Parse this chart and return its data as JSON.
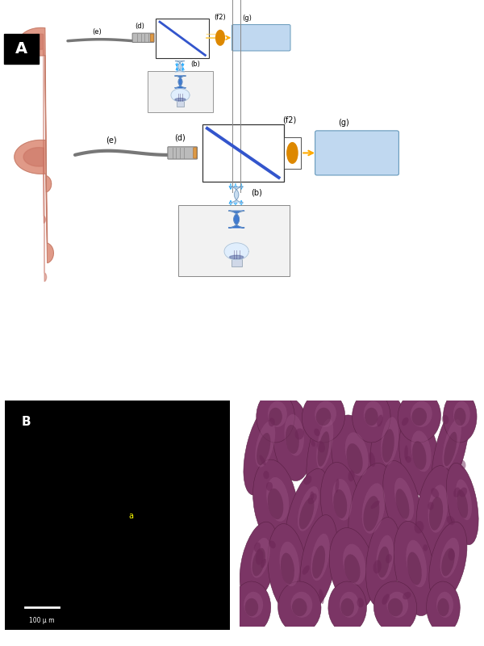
{
  "bg_color": "#ffffff",
  "panel_A_label": "A",
  "panel_B_label": "B",
  "microscopy_label": "a",
  "scale_bar_text": "100 μ m",
  "histo_bg": "#c8ece8",
  "stomach_outer": "#d4907a",
  "stomach_inner": "#c07060",
  "endoscope_cable": "#777777",
  "endoscope_tip": "#999999",
  "beamsplitter_color": "#3355cc",
  "box_border": "#333333",
  "lens_blue": "#2266cc",
  "lens_blue_light": "#88bbee",
  "lens_orange": "#dd8800",
  "detector_fill": "#c0d8f0",
  "detector_border": "#6699bb",
  "arrow_blue": "#22aaff",
  "arrow_yellow": "#ffaa00",
  "lightbulb_fill": "#ddeeff",
  "lightbulb_dark": "#334488",
  "label_fontsize": 6,
  "label2_fontsize": 7
}
